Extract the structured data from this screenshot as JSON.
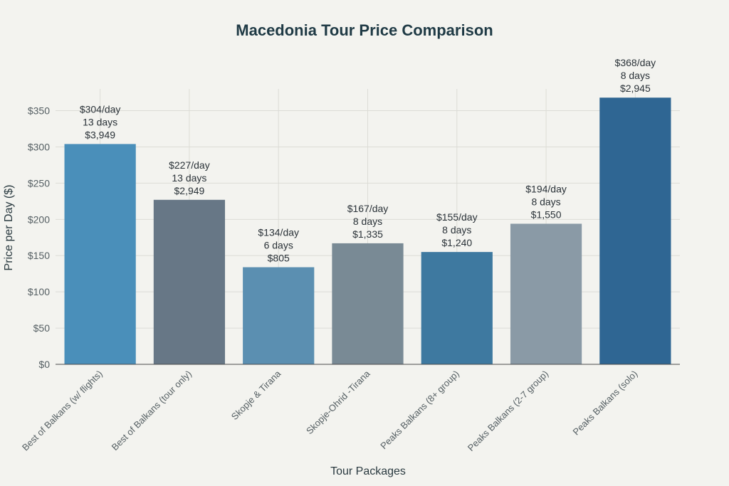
{
  "chart_data": {
    "type": "bar",
    "title": "Macedonia Tour Price Comparison",
    "xlabel": "Tour Packages",
    "ylabel": "Price per Day ($)",
    "ylim": [
      0,
      380
    ],
    "yticks": [
      0,
      50,
      100,
      150,
      200,
      250,
      300,
      350
    ],
    "ytick_labels": [
      "$0",
      "$50",
      "$100",
      "$150",
      "$200",
      "$250",
      "$300",
      "$350"
    ],
    "grid": true,
    "categories": [
      "Best of Balkans (w/ flights)",
      "Best of Balkans (tour only)",
      "Skopje & Tirana",
      "Skopje-Ohrid -Tirana",
      "Peaks Balkans (8+ group)",
      "Peaks Balkans (2-7 group)",
      "Peaks Balkans (solo)"
    ],
    "values": [
      304,
      227,
      134,
      167,
      155,
      194,
      368
    ],
    "colors": [
      "#4a8fba",
      "#677786",
      "#5b8fb1",
      "#798a95",
      "#3e79a0",
      "#8a9aa6",
      "#2f6693"
    ],
    "annotations": [
      [
        "$304/day",
        "13 days",
        "$3,949"
      ],
      [
        "$227/day",
        "13 days",
        "$2,949"
      ],
      [
        "$134/day",
        "6 days",
        "$805"
      ],
      [
        "$167/day",
        "8 days",
        "$1,335"
      ],
      [
        "$155/day",
        "8 days",
        "$1,240"
      ],
      [
        "$194/day",
        "8 days",
        "$1,550"
      ],
      [
        "$368/day",
        "8 days",
        "$2,945"
      ]
    ]
  }
}
